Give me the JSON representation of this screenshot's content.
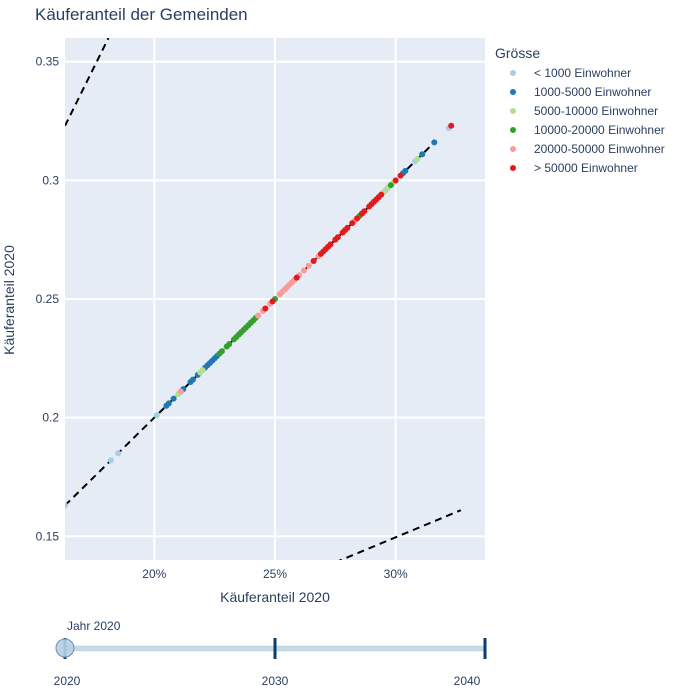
{
  "chart_data": {
    "type": "scatter",
    "title": "Käuferanteil der Gemeinden",
    "xlabel": "Käuferanteil 2020",
    "ylabel": "Käuferanteil 2020",
    "xlim": [
      0.163,
      0.337
    ],
    "ylim": [
      0.14,
      0.36
    ],
    "x_ticks": [
      0.2,
      0.25,
      0.3
    ],
    "x_tick_labels": [
      "20%",
      "25%",
      "30%"
    ],
    "y_ticks": [
      0.15,
      0.2,
      0.25,
      0.3,
      0.35
    ],
    "y_tick_labels": [
      "0.15",
      "0.2",
      "0.25",
      "0.3",
      "0.35"
    ],
    "grid": true,
    "legend": {
      "title": "Grösse",
      "placement": "right"
    },
    "series": [
      {
        "name": "< 1000 Einwohner",
        "color": "#a6cee3",
        "x": [
          0.163,
          0.182,
          0.185,
          0.201,
          0.22,
          0.223,
          0.296,
          0.308,
          0.322
        ],
        "y": [
          0.163,
          0.182,
          0.185,
          0.201,
          0.22,
          0.223,
          0.296,
          0.308,
          0.322
        ]
      },
      {
        "name": "1000-5000 Einwohner",
        "color": "#1f78b4",
        "x": [
          0.205,
          0.206,
          0.208,
          0.211,
          0.212,
          0.215,
          0.216,
          0.218,
          0.221,
          0.222,
          0.223,
          0.224,
          0.225,
          0.226,
          0.303,
          0.304,
          0.311,
          0.316
        ],
        "y": [
          0.205,
          0.206,
          0.208,
          0.211,
          0.212,
          0.215,
          0.216,
          0.218,
          0.221,
          0.222,
          0.223,
          0.224,
          0.225,
          0.226,
          0.303,
          0.304,
          0.311,
          0.316
        ]
      },
      {
        "name": "5000-10000 Einwohner",
        "color": "#b2df8a",
        "x": [
          0.21,
          0.219,
          0.22,
          0.227,
          0.24,
          0.243,
          0.291,
          0.295,
          0.297,
          0.299,
          0.309
        ],
        "y": [
          0.21,
          0.219,
          0.22,
          0.227,
          0.24,
          0.243,
          0.291,
          0.295,
          0.297,
          0.299,
          0.309
        ]
      },
      {
        "name": "10000-20000 Einwohner",
        "color": "#33a02c",
        "x": [
          0.227,
          0.228,
          0.23,
          0.231,
          0.233,
          0.234,
          0.235,
          0.236,
          0.237,
          0.238,
          0.239,
          0.24,
          0.241,
          0.242,
          0.25,
          0.285,
          0.286,
          0.298
        ],
        "y": [
          0.227,
          0.228,
          0.23,
          0.231,
          0.233,
          0.234,
          0.235,
          0.236,
          0.237,
          0.238,
          0.239,
          0.24,
          0.241,
          0.242,
          0.25,
          0.285,
          0.286,
          0.298
        ]
      },
      {
        "name": "20000-50000 Einwohner",
        "color": "#fb9a99",
        "x": [
          0.211,
          0.243,
          0.245,
          0.246,
          0.248,
          0.252,
          0.253,
          0.254,
          0.255,
          0.256,
          0.257,
          0.258,
          0.26,
          0.262,
          0.264,
          0.266,
          0.268,
          0.272,
          0.276,
          0.279,
          0.283
        ],
        "y": [
          0.211,
          0.243,
          0.245,
          0.246,
          0.248,
          0.252,
          0.253,
          0.254,
          0.255,
          0.256,
          0.257,
          0.258,
          0.26,
          0.262,
          0.264,
          0.266,
          0.268,
          0.272,
          0.276,
          0.279,
          0.283
        ]
      },
      {
        "name": "> 50000 Einwohner",
        "color": "#e31a1c",
        "x": [
          0.246,
          0.249,
          0.259,
          0.266,
          0.269,
          0.27,
          0.271,
          0.272,
          0.273,
          0.275,
          0.276,
          0.278,
          0.279,
          0.28,
          0.282,
          0.284,
          0.286,
          0.287,
          0.289,
          0.29,
          0.291,
          0.292,
          0.293,
          0.294,
          0.3,
          0.302,
          0.323
        ],
        "y": [
          0.246,
          0.249,
          0.259,
          0.266,
          0.269,
          0.27,
          0.271,
          0.272,
          0.273,
          0.275,
          0.276,
          0.278,
          0.279,
          0.28,
          0.282,
          0.284,
          0.286,
          0.287,
          0.289,
          0.29,
          0.291,
          0.292,
          0.293,
          0.294,
          0.3,
          0.302,
          0.323
        ]
      }
    ],
    "reference_lines": [
      {
        "style": "dashed",
        "color": "#000000",
        "x": [
          0.163,
          0.316
        ],
        "y": [
          0.163,
          0.316
        ]
      },
      {
        "style": "dashed",
        "color": "#000000",
        "x": [
          0.163,
          0.181
        ],
        "y": [
          0.323,
          0.36
        ]
      },
      {
        "style": "dashed",
        "color": "#000000",
        "x": [
          0.275,
          0.327
        ],
        "y": [
          0.139,
          0.161
        ]
      }
    ]
  },
  "slider": {
    "current_label": "Jahr 2020",
    "ticks": [
      "2020",
      "2030",
      "2040"
    ],
    "position": 0
  }
}
